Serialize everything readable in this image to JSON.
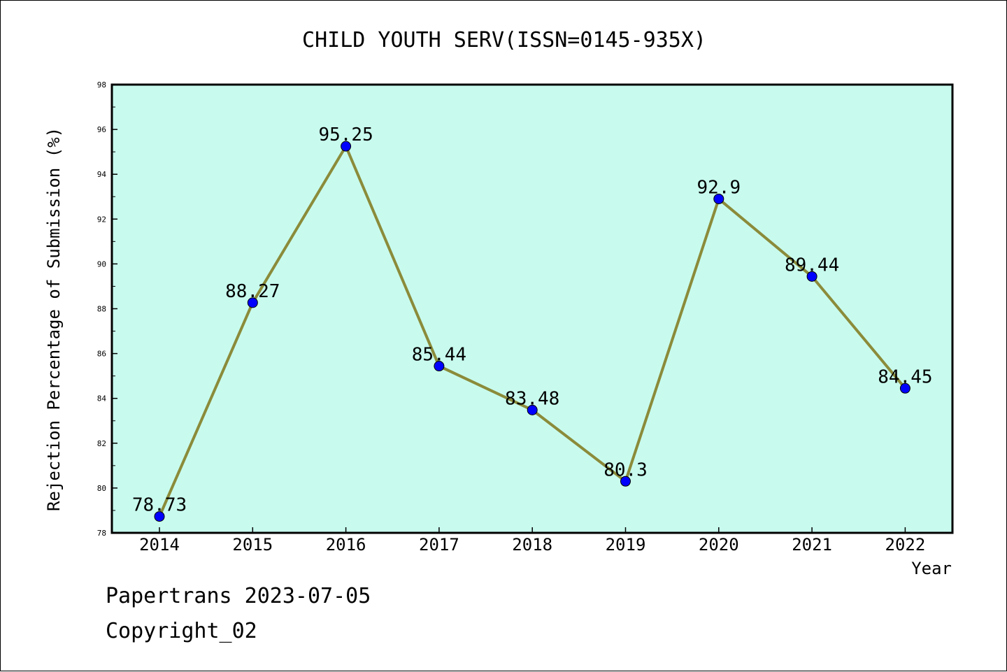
{
  "chart_data": {
    "type": "line",
    "title": "CHILD YOUTH SERV(ISSN=0145-935X)",
    "xlabel": "Year",
    "ylabel": "Rejection Percentage of Submission (%)",
    "categories": [
      "2014",
      "2015",
      "2016",
      "2017",
      "2018",
      "2019",
      "2020",
      "2021",
      "2022"
    ],
    "series": [
      {
        "values": [
          78.73,
          88.27,
          95.25,
          85.44,
          83.48,
          80.3,
          92.9,
          89.44,
          84.45
        ],
        "labels": [
          "78.73",
          "88.27",
          "95.25",
          "85.44",
          "83.48",
          "80.3",
          "92.9",
          "89.44",
          "84.45"
        ],
        "line_color": "#8b8b3a",
        "marker_color": "#0000ff"
      }
    ],
    "ylim": [
      78,
      98
    ],
    "yticks": [
      "78",
      "80",
      "82",
      "84",
      "86",
      "88",
      "90",
      "92",
      "94",
      "96",
      "98"
    ],
    "grid": false,
    "legend": "none",
    "plot_background": "#c8fbee"
  },
  "footer": {
    "line1": "Papertrans 2023-07-05",
    "line2": "Copyright_02"
  }
}
